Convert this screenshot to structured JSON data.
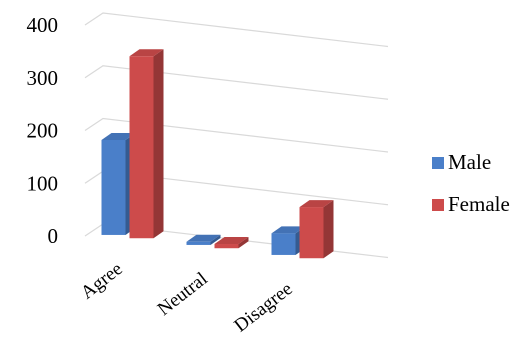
{
  "chart_data": {
    "type": "bar",
    "categories": [
      "Agree",
      "Neutral",
      "Disagree"
    ],
    "series": [
      {
        "name": "Male",
        "values": [
          180,
          6,
          41
        ],
        "color": "#4a7fc9"
      },
      {
        "name": "Female",
        "values": [
          345,
          8,
          97
        ],
        "color": "#cd4b4b"
      }
    ],
    "title": "",
    "xlabel": "",
    "ylabel": "",
    "ylim": [
      0,
      400
    ],
    "yticks": [
      "0",
      "100",
      "200",
      "300",
      "400"
    ],
    "grid": true,
    "legend": "right",
    "style": "3d-clustered-column"
  }
}
